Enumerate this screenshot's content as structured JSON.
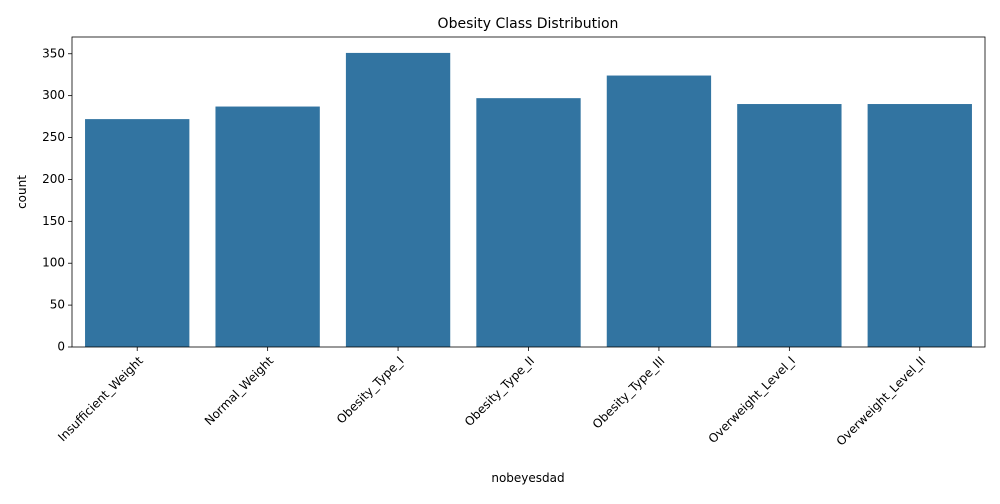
{
  "chart_data": {
    "type": "bar",
    "title": "Obesity Class Distribution",
    "xlabel": "nobeyesdad",
    "ylabel": "count",
    "categories": [
      "Insufficient_Weight",
      "Normal_Weight",
      "Obesity_Type_I",
      "Obesity_Type_II",
      "Obesity_Type_III",
      "Overweight_Level_I",
      "Overweight_Level_II"
    ],
    "values": [
      272,
      287,
      351,
      297,
      324,
      290,
      290
    ],
    "ylim": [
      0,
      370
    ],
    "yticks": [
      0,
      50,
      100,
      150,
      200,
      250,
      300,
      350
    ],
    "ytick_labels": [
      "0",
      "50",
      "100",
      "150",
      "200",
      "250",
      "300",
      "350"
    ],
    "xtick_rotation_deg": 45,
    "grid": false,
    "legend": "none",
    "colors": {
      "bar": "#3274a1",
      "axis": "#000000",
      "text": "#000000"
    }
  }
}
